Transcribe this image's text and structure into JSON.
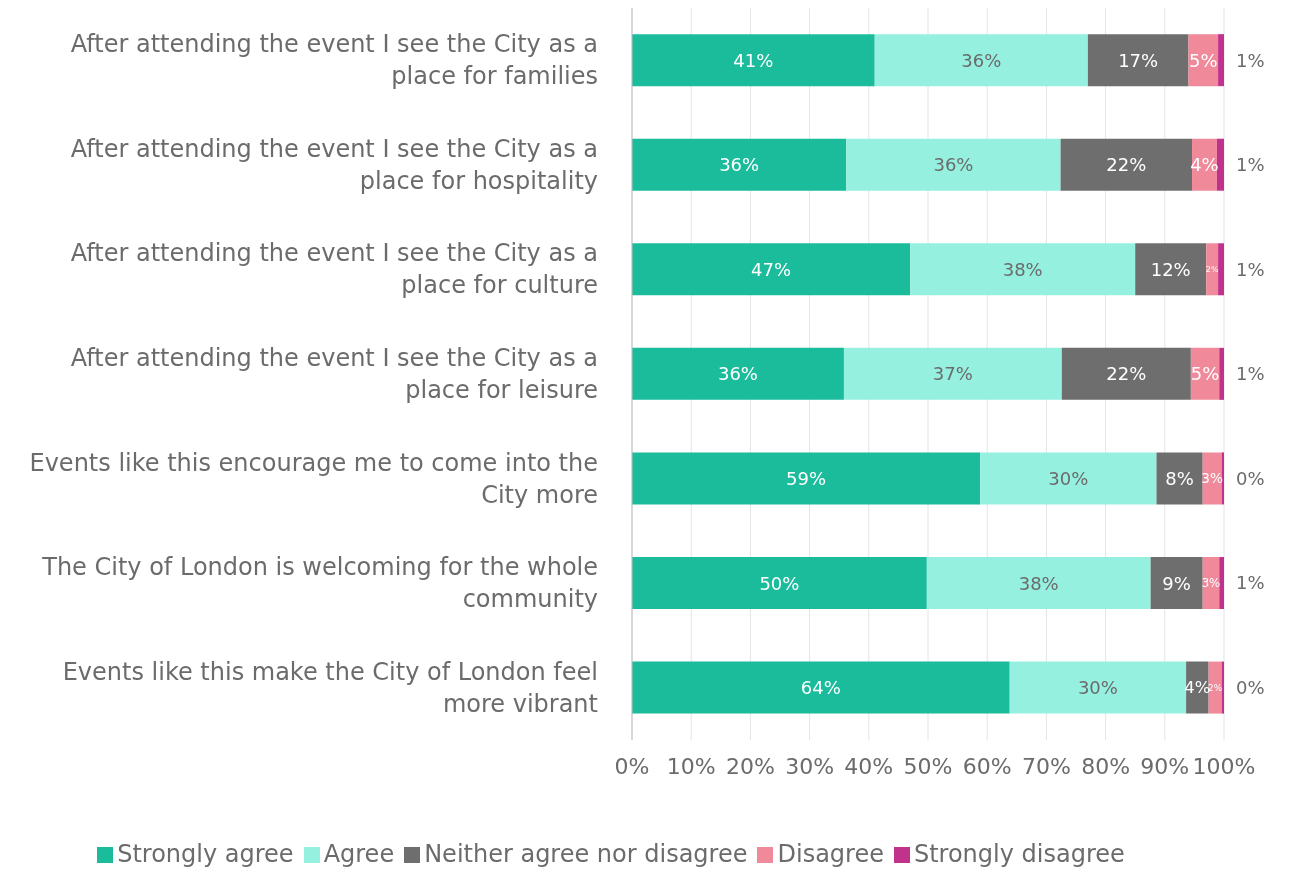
{
  "chart_data": {
    "type": "bar",
    "orientation": "horizontal",
    "stacked": true,
    "categories": [
      "After attending the event I see the City as a place for families",
      "After attending the event I see the City as a place for hospitality",
      "After attending the event I see the City as a place for culture",
      "After attending the event I see the City as a place for leisure",
      "Events like this encourage me to come into the City more",
      "The City of London is welcoming for the whole community",
      "Events like this make the City of London feel more vibrant"
    ],
    "series": [
      {
        "name": "Strongly agree",
        "color": "#1abc9c",
        "values": [
          41,
          36.2,
          47,
          35.8,
          58.8,
          49.8,
          63.8
        ],
        "value_labels": [
          "41%",
          "36%",
          "47%",
          "36%",
          "59%",
          "50%",
          "64%"
        ]
      },
      {
        "name": "Agree",
        "color": "#96f0e0",
        "values": [
          36,
          36.2,
          38,
          36.8,
          29.8,
          37.8,
          29.8
        ],
        "value_labels": [
          "36%",
          "36%",
          "38%",
          "37%",
          "30%",
          "38%",
          "30%"
        ]
      },
      {
        "name": "Neither agree nor disagree",
        "color": "#6e6e6e",
        "values": [
          17,
          22.2,
          12,
          21.8,
          7.8,
          8.8,
          3.8
        ],
        "value_labels": [
          "17%",
          "22%",
          "12%",
          "22%",
          "8%",
          "9%",
          "4%"
        ]
      },
      {
        "name": "Disagree",
        "color": "#f08a9a",
        "values": [
          5,
          4.2,
          2,
          4.8,
          3.2,
          2.8,
          2.2
        ],
        "value_labels": [
          "5%",
          "4%",
          "2%",
          "5%",
          "3%",
          "3%",
          "2%"
        ]
      },
      {
        "name": "Strongly disagree",
        "color": "#c0328c",
        "values": [
          1,
          1.2,
          1,
          0.8,
          0.4,
          0.8,
          0.4
        ],
        "value_labels": [
          "1%",
          "1%",
          "1%",
          "1%",
          "0%",
          "1%",
          "0%"
        ]
      }
    ],
    "xlim": [
      0,
      100
    ],
    "xticks": [
      {
        "value": 0,
        "label": "0%"
      },
      {
        "value": 10,
        "label": "10%"
      },
      {
        "value": 20,
        "label": "20%"
      },
      {
        "value": 30,
        "label": "30%"
      },
      {
        "value": 40,
        "label": "40%"
      },
      {
        "value": 50,
        "label": "50%"
      },
      {
        "value": 60,
        "label": "60%"
      },
      {
        "value": 70,
        "label": "70%"
      },
      {
        "value": 80,
        "label": "80%"
      },
      {
        "value": 90,
        "label": "90%"
      },
      {
        "value": 100,
        "label": "100%"
      }
    ],
    "grid": "x",
    "legend": "bottom"
  }
}
